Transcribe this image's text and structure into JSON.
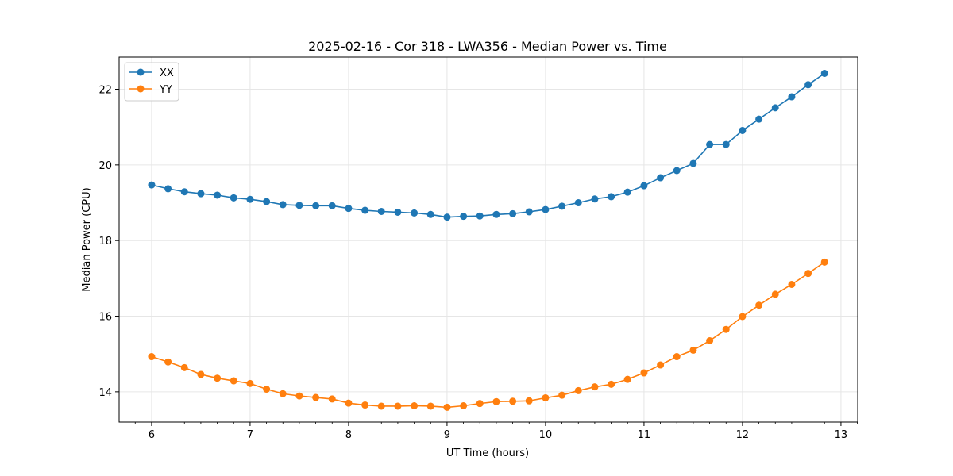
{
  "chart_data": {
    "type": "line",
    "title": "2025-02-16 - Cor 318 - LWA356 - Median Power vs. Time",
    "xlabel": "UT Time (hours)",
    "ylabel": "Median Power (CPU)",
    "xlim": [
      5.67,
      13.17
    ],
    "ylim": [
      13.2,
      22.85
    ],
    "xticks": [
      6,
      7,
      8,
      9,
      10,
      11,
      12,
      13
    ],
    "yticks": [
      14,
      16,
      18,
      20,
      22
    ],
    "grid": true,
    "legend_position": "top-left",
    "x": [
      6.0,
      6.167,
      6.333,
      6.5,
      6.667,
      6.833,
      7.0,
      7.167,
      7.333,
      7.5,
      7.667,
      7.833,
      8.0,
      8.167,
      8.333,
      8.5,
      8.667,
      8.833,
      9.0,
      9.167,
      9.333,
      9.5,
      9.667,
      9.833,
      10.0,
      10.167,
      10.333,
      10.5,
      10.667,
      10.833,
      11.0,
      11.167,
      11.333,
      11.5,
      11.667,
      11.833,
      12.0,
      12.167,
      12.333,
      12.5,
      12.667,
      12.833
    ],
    "series": [
      {
        "name": "XX",
        "color": "#1f77b4",
        "values": [
          19.47,
          19.37,
          19.29,
          19.24,
          19.2,
          19.13,
          19.09,
          19.03,
          18.95,
          18.93,
          18.92,
          18.92,
          18.85,
          18.8,
          18.77,
          18.75,
          18.73,
          18.69,
          18.62,
          18.64,
          18.65,
          18.69,
          18.71,
          18.76,
          18.82,
          18.91,
          19.0,
          19.1,
          19.16,
          19.28,
          19.45,
          19.66,
          19.85,
          20.04,
          20.54,
          20.54,
          20.91,
          21.21,
          21.51,
          21.8,
          22.12,
          22.42
        ]
      },
      {
        "name": "YY",
        "color": "#ff7f0e",
        "values": [
          14.93,
          14.79,
          14.64,
          14.46,
          14.36,
          14.29,
          14.22,
          14.07,
          13.95,
          13.89,
          13.85,
          13.81,
          13.7,
          13.65,
          13.62,
          13.62,
          13.63,
          13.62,
          13.59,
          13.63,
          13.69,
          13.74,
          13.75,
          13.76,
          13.84,
          13.91,
          14.03,
          14.13,
          14.2,
          14.33,
          14.5,
          14.71,
          14.93,
          15.1,
          15.35,
          15.65,
          15.99,
          16.29,
          16.58,
          16.84,
          17.13,
          17.43
        ]
      }
    ]
  }
}
